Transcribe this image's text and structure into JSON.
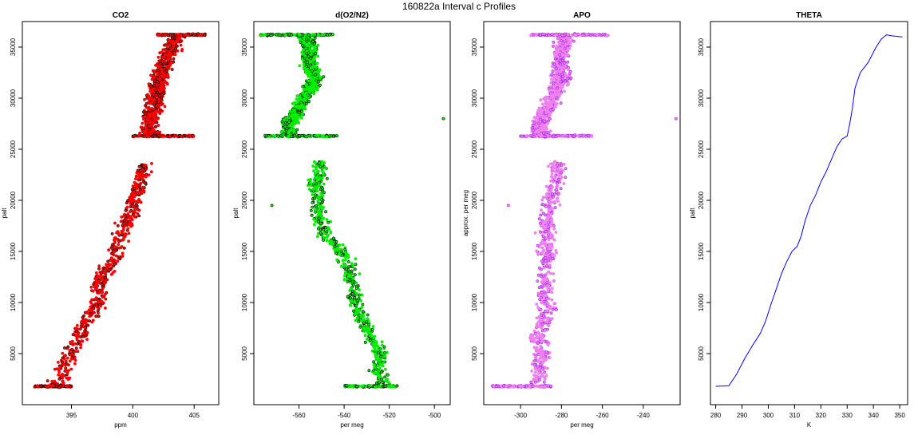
{
  "suptitle": "160822a   Interval c Profiles",
  "colors": {
    "co2": "#ff0000",
    "o2n2": "#00ee00",
    "apo": "#ee82ee",
    "apo_dark": "#a020f0",
    "theta": "#0000ff",
    "outline": "#000000"
  },
  "chart_data": [
    {
      "type": "scatter",
      "title": "CO2",
      "xlabel": "ppm",
      "ylabel": "palt",
      "xlim": [
        391,
        407
      ],
      "ylim": [
        0,
        37500
      ],
      "xticks": [
        "395",
        "400",
        "405"
      ],
      "yticks": [
        "5000",
        "10000",
        "15000",
        "20000",
        "25000",
        "30000",
        "35000"
      ],
      "profile": [
        [
          1800,
          393.5
        ],
        [
          2600,
          394.2
        ],
        [
          3500,
          394.3
        ],
        [
          4500,
          394.8
        ],
        [
          5500,
          395.0
        ],
        [
          6500,
          395.8
        ],
        [
          7500,
          396.0
        ],
        [
          8500,
          396.3
        ],
        [
          9500,
          397.0
        ],
        [
          10500,
          397.3
        ],
        [
          11500,
          397.2
        ],
        [
          12500,
          397.5
        ],
        [
          13500,
          398.0
        ],
        [
          14500,
          398.5
        ],
        [
          15500,
          398.8
        ],
        [
          16500,
          399.0
        ],
        [
          17500,
          399.3
        ],
        [
          18500,
          399.8
        ],
        [
          19500,
          400.0
        ],
        [
          20500,
          400.2
        ],
        [
          21500,
          400.5
        ],
        [
          22500,
          400.8
        ],
        [
          23500,
          401.0
        ],
        [
          26300,
          401.5
        ],
        [
          27000,
          401.3
        ],
        [
          28000,
          401.5
        ],
        [
          29000,
          401.7
        ],
        [
          30000,
          401.9
        ],
        [
          31000,
          402.0
        ],
        [
          32000,
          402.2
        ],
        [
          33000,
          402.5
        ],
        [
          34000,
          402.8
        ],
        [
          35000,
          403.2
        ],
        [
          36300,
          403.5
        ]
      ],
      "spread": 1.0,
      "bands": [
        {
          "palt": 1800,
          "min": 392.0,
          "max": 395.0
        },
        {
          "palt": 26300,
          "min": 400.0,
          "max": 405.0
        },
        {
          "palt": 36200,
          "min": 402.0,
          "max": 406.0
        }
      ]
    },
    {
      "type": "scatter",
      "title": "d(O2/N2)",
      "xlabel": "per meg",
      "ylabel": "palt",
      "xlim": [
        -580,
        -493
      ],
      "ylim": [
        0,
        37500
      ],
      "xticks": [
        "-560",
        "-540",
        "-520",
        "-500"
      ],
      "yticks": [
        "5000",
        "10000",
        "15000",
        "20000",
        "25000",
        "30000",
        "35000"
      ],
      "profile": [
        [
          1800,
          -522
        ],
        [
          2600,
          -524
        ],
        [
          3500,
          -525
        ],
        [
          4500,
          -523
        ],
        [
          5500,
          -525
        ],
        [
          6500,
          -528
        ],
        [
          7500,
          -530
        ],
        [
          8500,
          -532
        ],
        [
          9500,
          -534
        ],
        [
          10500,
          -536
        ],
        [
          11500,
          -535
        ],
        [
          12500,
          -537
        ],
        [
          13500,
          -538
        ],
        [
          14500,
          -540
        ],
        [
          15500,
          -543
        ],
        [
          16500,
          -548
        ],
        [
          17500,
          -550
        ],
        [
          18500,
          -551
        ],
        [
          19500,
          -552
        ],
        [
          20500,
          -552
        ],
        [
          21500,
          -553
        ],
        [
          22500,
          -551
        ],
        [
          23500,
          -550
        ],
        [
          26300,
          -565
        ],
        [
          27000,
          -565
        ],
        [
          28000,
          -563
        ],
        [
          29000,
          -560
        ],
        [
          30000,
          -558
        ],
        [
          31000,
          -555
        ],
        [
          32000,
          -553
        ],
        [
          33000,
          -555
        ],
        [
          34000,
          -556
        ],
        [
          35000,
          -555
        ],
        [
          36300,
          -557
        ]
      ],
      "spread": 5.0,
      "bands": [
        {
          "palt": 1800,
          "min": -540,
          "max": -516
        },
        {
          "palt": 26300,
          "min": -575,
          "max": -543
        },
        {
          "palt": 36200,
          "min": -577,
          "max": -545
        }
      ],
      "outliers": [
        [
          28000,
          -496
        ],
        [
          19500,
          -572
        ]
      ]
    },
    {
      "type": "scatter",
      "title": "APO",
      "xlabel": "per meg",
      "ylabel": "approx. per meg",
      "xlim": [
        -318,
        -222
      ],
      "ylim": [
        0,
        37500
      ],
      "xticks": [
        "-300",
        "-280",
        "-260",
        "-240"
      ],
      "yticks": [
        "5000",
        "10000",
        "15000",
        "20000",
        "25000",
        "30000",
        "35000"
      ],
      "profile": [
        [
          1800,
          -296
        ],
        [
          2600,
          -290
        ],
        [
          3500,
          -291
        ],
        [
          4500,
          -290
        ],
        [
          5500,
          -289
        ],
        [
          6500,
          -292
        ],
        [
          7500,
          -290
        ],
        [
          8500,
          -288
        ],
        [
          9500,
          -287
        ],
        [
          10500,
          -288
        ],
        [
          11500,
          -287
        ],
        [
          12500,
          -288
        ],
        [
          13500,
          -287
        ],
        [
          14500,
          -286
        ],
        [
          15500,
          -288
        ],
        [
          16500,
          -287
        ],
        [
          17500,
          -288
        ],
        [
          18500,
          -286
        ],
        [
          19500,
          -286
        ],
        [
          20500,
          -284
        ],
        [
          21500,
          -283
        ],
        [
          22500,
          -282
        ],
        [
          23500,
          -282
        ],
        [
          26300,
          -290
        ],
        [
          27000,
          -291
        ],
        [
          28000,
          -290
        ],
        [
          29000,
          -286
        ],
        [
          30000,
          -285
        ],
        [
          31000,
          -282
        ],
        [
          32000,
          -280
        ],
        [
          33000,
          -281
        ],
        [
          34000,
          -281
        ],
        [
          35000,
          -279
        ],
        [
          36300,
          -278
        ]
      ],
      "spread": 6.0,
      "bands": [
        {
          "palt": 1800,
          "min": -314,
          "max": -285
        },
        {
          "palt": 26300,
          "min": -300,
          "max": -265
        },
        {
          "palt": 36200,
          "min": -295,
          "max": -257
        }
      ],
      "outliers": [
        [
          28000,
          -224
        ],
        [
          19500,
          -306
        ]
      ]
    },
    {
      "type": "line",
      "title": "THETA",
      "xlabel": "K",
      "ylabel": "palt",
      "xlim": [
        278,
        353
      ],
      "ylim": [
        0,
        37500
      ],
      "xticks": [
        "280",
        "290",
        "300",
        "310",
        "320",
        "330",
        "340",
        "350"
      ],
      "yticks": [
        "5000",
        "10000",
        "15000",
        "20000",
        "25000",
        "30000",
        "35000"
      ],
      "points": [
        [
          280,
          1800
        ],
        [
          285,
          1850
        ],
        [
          288,
          3000
        ],
        [
          291,
          4500
        ],
        [
          294,
          5800
        ],
        [
          297,
          7000
        ],
        [
          299,
          8200
        ],
        [
          301,
          9800
        ],
        [
          303,
          11300
        ],
        [
          305,
          12800
        ],
        [
          307,
          14000
        ],
        [
          309,
          15000
        ],
        [
          311,
          15500
        ],
        [
          312.5,
          16500
        ],
        [
          314,
          18000
        ],
        [
          316,
          19500
        ],
        [
          318,
          20500
        ],
        [
          320,
          21800
        ],
        [
          322,
          22800
        ],
        [
          324,
          24000
        ],
        [
          326,
          25200
        ],
        [
          328,
          26000
        ],
        [
          330,
          26300
        ],
        [
          331,
          27500
        ],
        [
          332,
          29000
        ],
        [
          333,
          31000
        ],
        [
          335,
          32500
        ],
        [
          338,
          33500
        ],
        [
          341,
          35000
        ],
        [
          343,
          35800
        ],
        [
          345,
          36200
        ],
        [
          347,
          36100
        ],
        [
          351,
          36000
        ]
      ]
    }
  ]
}
